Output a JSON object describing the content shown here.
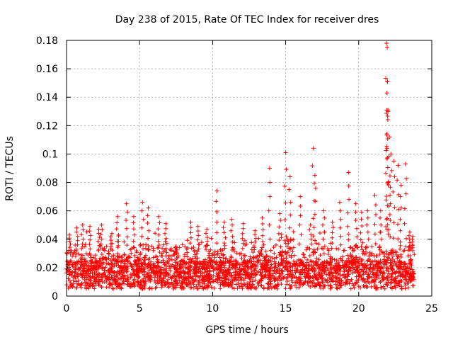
{
  "chart_data": {
    "type": "scatter",
    "title": "Day 238 of 2015, Rate Of TEC Index for receiver dres",
    "xlabel": "GPS time / hours",
    "ylabel": "ROTI / TECUs",
    "xlim": [
      0,
      25
    ],
    "ylim": [
      0,
      0.18
    ],
    "xticks": [
      0,
      5,
      10,
      15,
      20,
      25
    ],
    "yticks": [
      0,
      0.02,
      0.04,
      0.06,
      0.08,
      0.1,
      0.12,
      0.14,
      0.16,
      0.18
    ],
    "xtick_labels": [
      "0",
      "5",
      "10",
      "15",
      "20",
      "25"
    ],
    "ytick_labels": [
      "0",
      "0.02",
      "0.04",
      "0.06",
      "0.08",
      "0.1",
      "0.12",
      "0.14",
      "0.16",
      "0.18"
    ],
    "grid": true,
    "marker": "plus",
    "color": "#ff0000",
    "data_x_range": [
      0,
      23.8
    ],
    "series": [
      {
        "points": [
          [
            0.2,
            0.043
          ],
          [
            0.7,
            0.048
          ],
          [
            1.1,
            0.05
          ],
          [
            1.6,
            0.049
          ],
          [
            2.2,
            0.047
          ],
          [
            2.4,
            0.05
          ],
          [
            3.1,
            0.044
          ],
          [
            3.5,
            0.056
          ],
          [
            4.1,
            0.065
          ],
          [
            4.6,
            0.056
          ],
          [
            5.2,
            0.066
          ],
          [
            5.6,
            0.062
          ],
          [
            6.3,
            0.056
          ],
          [
            6.8,
            0.051
          ],
          [
            7.5,
            0.035
          ],
          [
            8.5,
            0.052
          ],
          [
            9.0,
            0.049
          ],
          [
            9.6,
            0.047
          ],
          [
            10.3,
            0.074
          ],
          [
            10.8,
            0.052
          ],
          [
            11.3,
            0.054
          ],
          [
            12.1,
            0.051
          ],
          [
            12.9,
            0.046
          ],
          [
            13.4,
            0.055
          ],
          [
            13.9,
            0.09
          ],
          [
            14.6,
            0.058
          ],
          [
            15.0,
            0.101
          ],
          [
            15.3,
            0.084
          ],
          [
            16.0,
            0.07
          ],
          [
            16.7,
            0.05
          ],
          [
            16.9,
            0.104
          ],
          [
            17.0,
            0.085
          ],
          [
            17.6,
            0.06
          ],
          [
            18.2,
            0.052
          ],
          [
            18.7,
            0.066
          ],
          [
            19.3,
            0.087
          ],
          [
            19.8,
            0.065
          ],
          [
            20.2,
            0.059
          ],
          [
            20.6,
            0.06
          ],
          [
            21.1,
            0.071
          ],
          [
            21.5,
            0.06
          ],
          [
            21.9,
            0.178
          ],
          [
            21.95,
            0.175
          ],
          [
            21.97,
            0.151
          ],
          [
            21.93,
            0.143
          ],
          [
            22.0,
            0.131
          ],
          [
            22.0,
            0.13
          ],
          [
            22.1,
            0.112
          ],
          [
            22.2,
            0.1
          ],
          [
            22.4,
            0.095
          ],
          [
            22.7,
            0.092
          ],
          [
            22.9,
            0.078
          ],
          [
            23.2,
            0.093
          ],
          [
            23.5,
            0.045
          ],
          [
            23.7,
            0.042
          ]
        ]
      }
    ]
  }
}
